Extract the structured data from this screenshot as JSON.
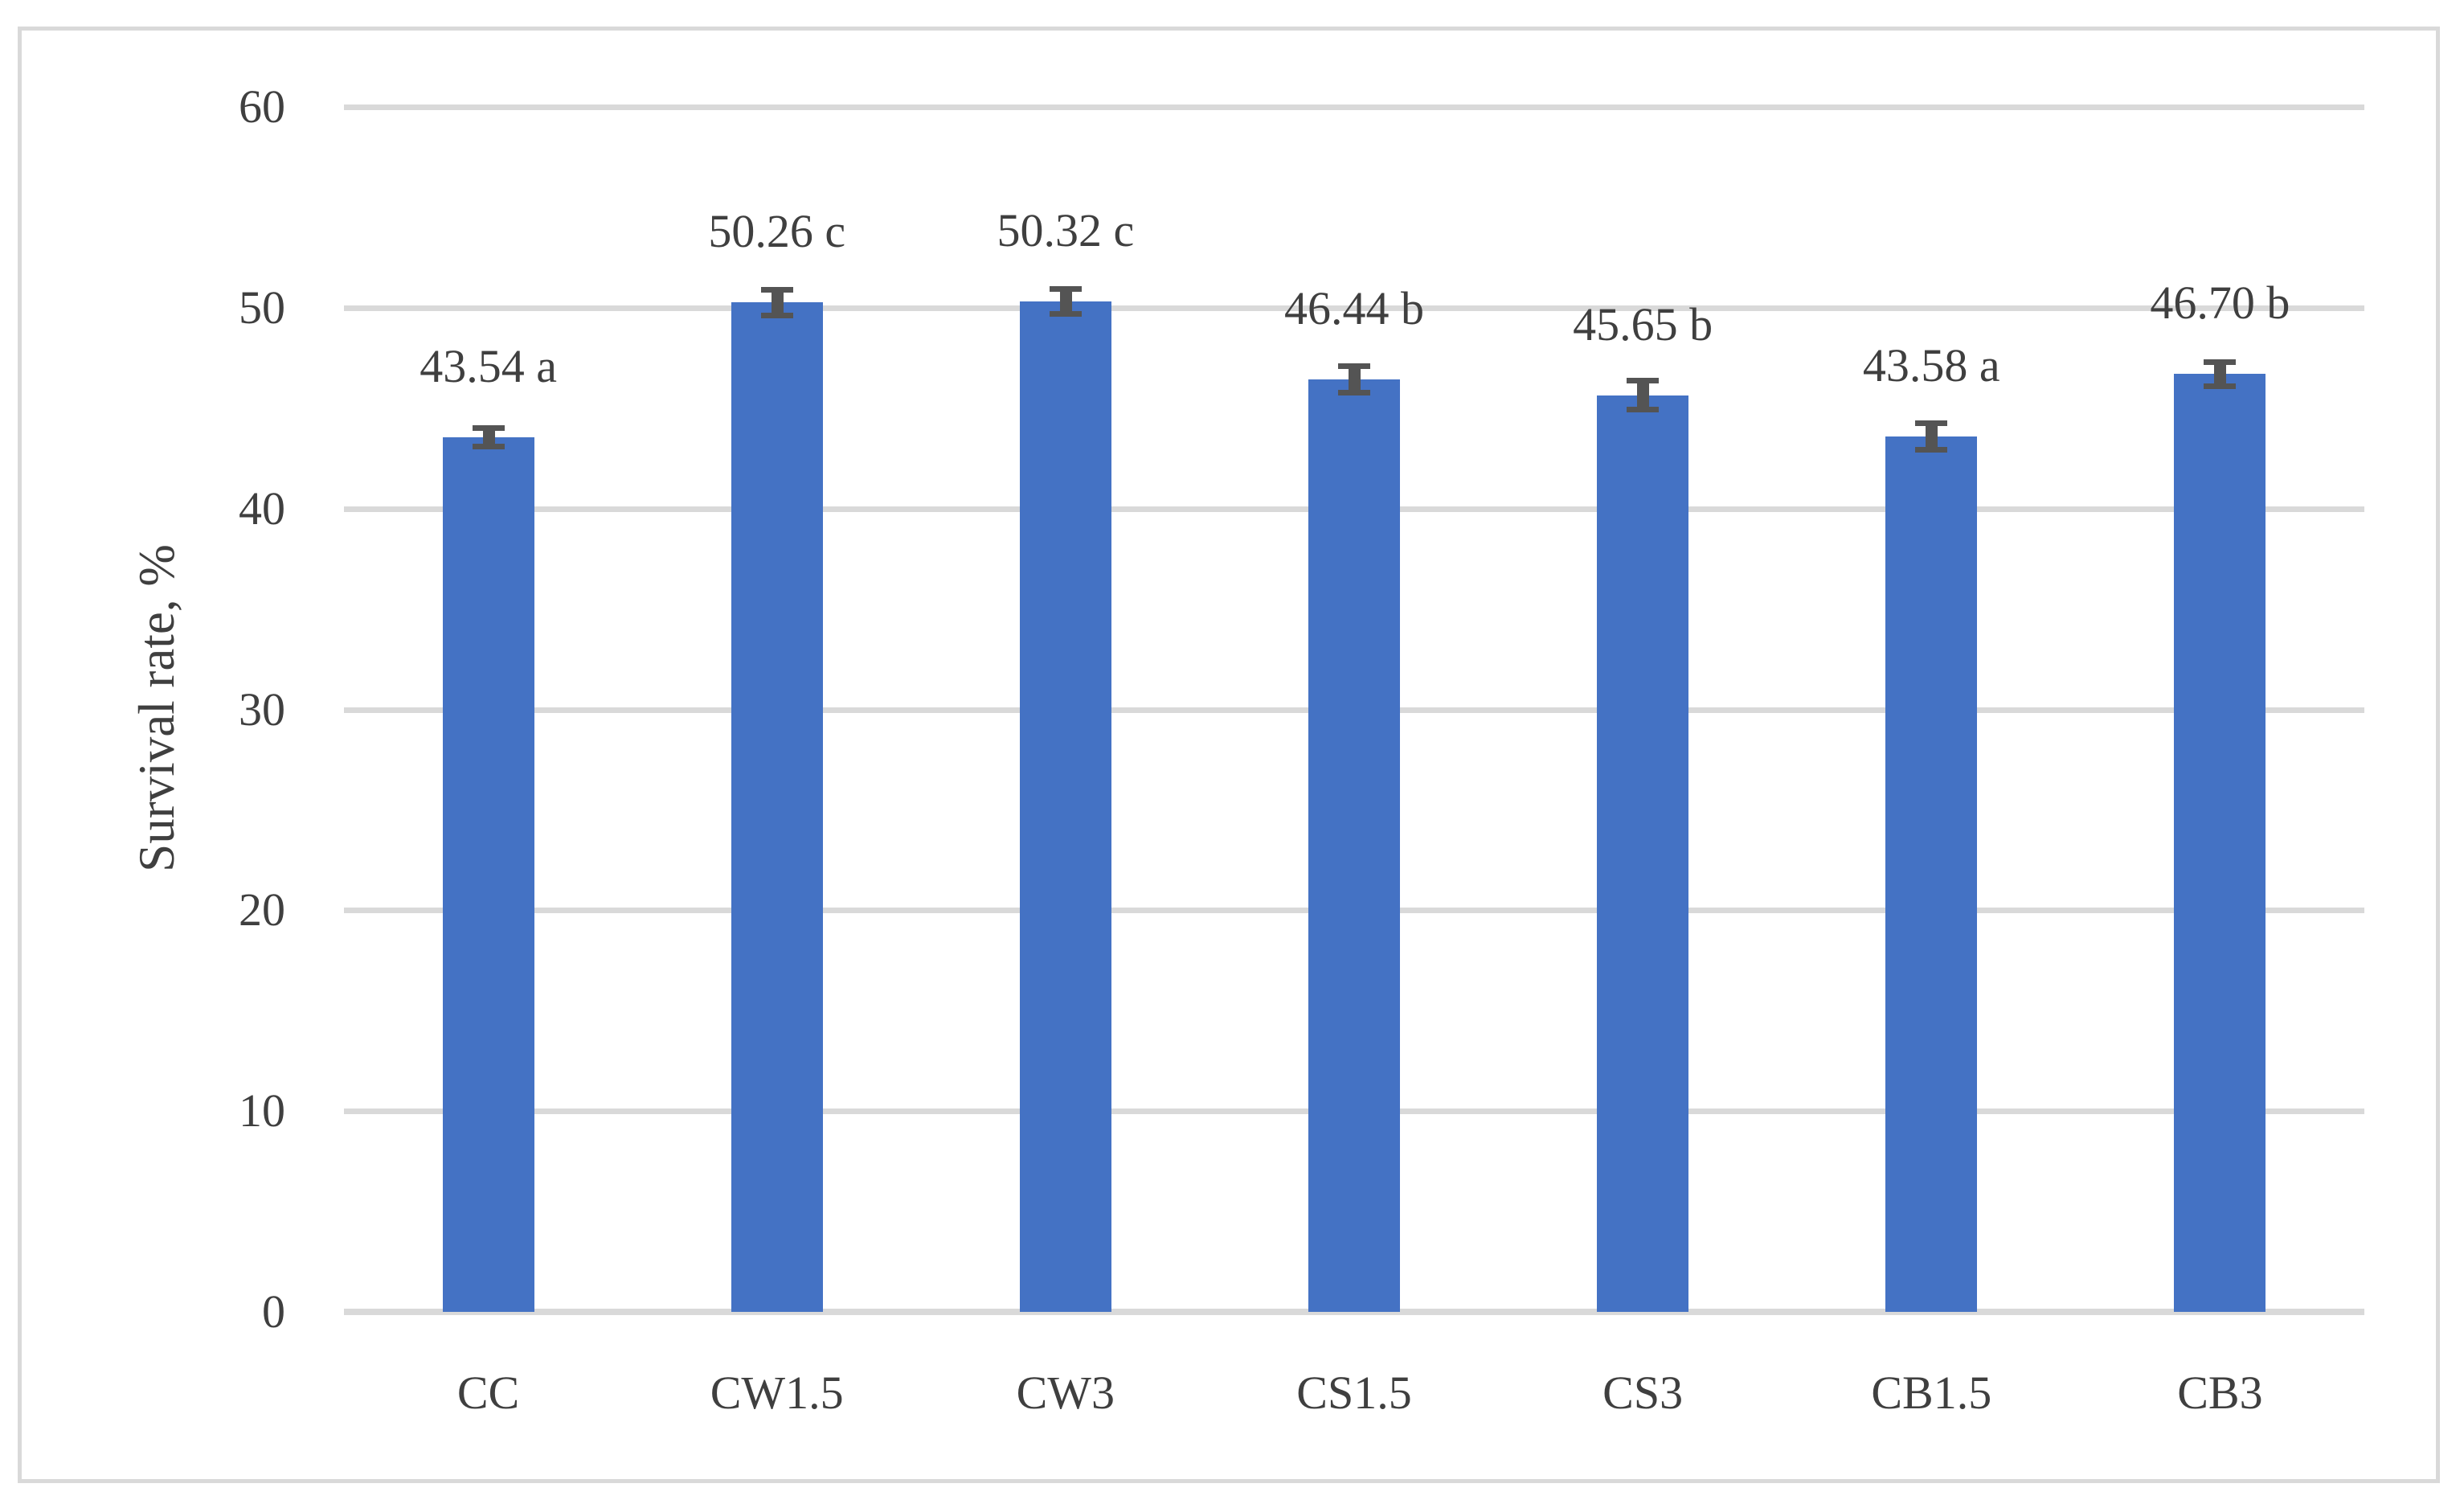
{
  "chart_data": {
    "type": "bar",
    "title": "",
    "ylabel": "Survival rate, %",
    "xlabel": "",
    "ylim": [
      0,
      60
    ],
    "yticks": [
      0,
      10,
      20,
      30,
      40,
      50,
      60
    ],
    "grid": "horizontal gridlines on",
    "legend": "none",
    "categories": [
      "CC",
      "CW1.5",
      "CW3",
      "CS1.5",
      "CS3",
      "CB1.5",
      "CB3"
    ],
    "values": [
      43.54,
      50.26,
      50.32,
      46.44,
      45.65,
      43.58,
      46.7
    ],
    "data_labels": [
      "43.54 a",
      "50.26 c",
      "50.32 c",
      "46.44 b",
      "45.65 b",
      "43.58 a",
      "46.70 b"
    ],
    "error_bars_plus_minus": [
      0.6,
      0.78,
      0.75,
      0.8,
      0.85,
      0.8,
      0.75
    ],
    "colors": {
      "bar": "#4472C4",
      "error_bar": "#545454",
      "gridline": "#D9D9D9",
      "axis_line": "#D9D9D9",
      "text": "#3F3F3F",
      "border": "#D9D9D9",
      "background": "#FFFFFF"
    }
  }
}
